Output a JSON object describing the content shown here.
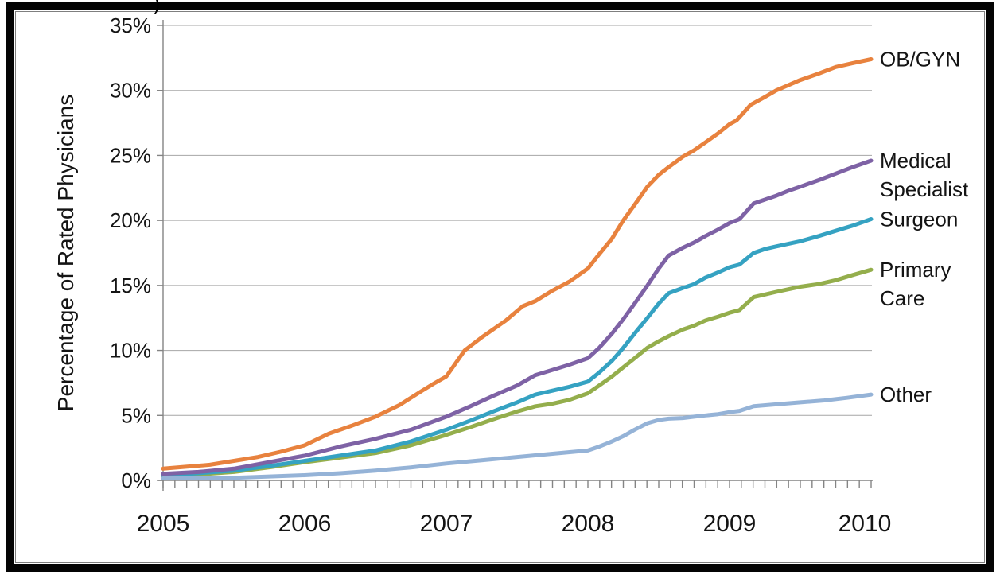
{
  "artifact_text": ")",
  "frame": {
    "outer_border_color": "#040404",
    "inner_line_color": "#7f7f7f",
    "background": "#ffffff"
  },
  "chart_data": {
    "type": "line",
    "title": "",
    "xlabel": "",
    "ylabel": "Percentage of Rated Physicians",
    "x_range": [
      2005,
      2010
    ],
    "y_range": [
      0,
      35
    ],
    "grid": true,
    "grid_color": "#a6a6a6",
    "axis_color": "#848484",
    "text_color": "#141414",
    "y_tick_values": [
      0,
      5,
      10,
      15,
      20,
      25,
      30,
      35
    ],
    "y_tick_suffix": "%",
    "x_tick_labels": [
      "2005",
      "2006",
      "2007",
      "2008",
      "2009",
      "2010"
    ],
    "minor_ticks_per_year": 12,
    "legend_position": "labels-at-line-ends-right",
    "z_order": [
      3,
      2,
      1,
      0,
      4
    ],
    "series": [
      {
        "name": "OB/GYN",
        "label_lines": [
          "OB/GYN"
        ],
        "color": "#E8823E",
        "points": [
          [
            2005.0,
            0.9
          ],
          [
            2005.17,
            1.05
          ],
          [
            2005.33,
            1.2
          ],
          [
            2005.5,
            1.5
          ],
          [
            2005.67,
            1.8
          ],
          [
            2005.83,
            2.2
          ],
          [
            2006.0,
            2.7
          ],
          [
            2006.17,
            3.6
          ],
          [
            2006.33,
            4.2
          ],
          [
            2006.5,
            4.9
          ],
          [
            2006.67,
            5.8
          ],
          [
            2006.83,
            6.9
          ],
          [
            2006.92,
            7.5
          ],
          [
            2007.0,
            8.0
          ],
          [
            2007.13,
            10.0
          ],
          [
            2007.25,
            11.0
          ],
          [
            2007.42,
            12.3
          ],
          [
            2007.54,
            13.4
          ],
          [
            2007.63,
            13.8
          ],
          [
            2007.75,
            14.6
          ],
          [
            2007.87,
            15.3
          ],
          [
            2008.0,
            16.3
          ],
          [
            2008.08,
            17.4
          ],
          [
            2008.17,
            18.6
          ],
          [
            2008.25,
            20.0
          ],
          [
            2008.33,
            21.2
          ],
          [
            2008.42,
            22.6
          ],
          [
            2008.5,
            23.5
          ],
          [
            2008.57,
            24.1
          ],
          [
            2008.67,
            24.9
          ],
          [
            2008.75,
            25.4
          ],
          [
            2008.83,
            26.0
          ],
          [
            2008.92,
            26.7
          ],
          [
            2009.0,
            27.4
          ],
          [
            2009.05,
            27.7
          ],
          [
            2009.15,
            28.9
          ],
          [
            2009.25,
            29.5
          ],
          [
            2009.33,
            30.0
          ],
          [
            2009.5,
            30.8
          ],
          [
            2009.63,
            31.3
          ],
          [
            2009.75,
            31.8
          ],
          [
            2009.87,
            32.1
          ],
          [
            2010.0,
            32.4
          ]
        ]
      },
      {
        "name": "Medical Specialist",
        "label_lines": [
          "Medical",
          "Specialist"
        ],
        "color": "#7E62A5",
        "points": [
          [
            2005.0,
            0.5
          ],
          [
            2005.25,
            0.65
          ],
          [
            2005.5,
            0.9
          ],
          [
            2005.75,
            1.4
          ],
          [
            2006.0,
            1.9
          ],
          [
            2006.25,
            2.6
          ],
          [
            2006.5,
            3.2
          ],
          [
            2006.75,
            3.9
          ],
          [
            2007.0,
            4.9
          ],
          [
            2007.17,
            5.7
          ],
          [
            2007.33,
            6.5
          ],
          [
            2007.5,
            7.3
          ],
          [
            2007.63,
            8.1
          ],
          [
            2007.75,
            8.5
          ],
          [
            2007.87,
            8.9
          ],
          [
            2008.0,
            9.4
          ],
          [
            2008.08,
            10.2
          ],
          [
            2008.17,
            11.3
          ],
          [
            2008.25,
            12.4
          ],
          [
            2008.33,
            13.6
          ],
          [
            2008.42,
            15.0
          ],
          [
            2008.5,
            16.3
          ],
          [
            2008.57,
            17.3
          ],
          [
            2008.67,
            17.9
          ],
          [
            2008.75,
            18.3
          ],
          [
            2008.83,
            18.8
          ],
          [
            2008.92,
            19.3
          ],
          [
            2009.0,
            19.8
          ],
          [
            2009.07,
            20.1
          ],
          [
            2009.17,
            21.3
          ],
          [
            2009.25,
            21.6
          ],
          [
            2009.33,
            21.9
          ],
          [
            2009.42,
            22.3
          ],
          [
            2009.5,
            22.6
          ],
          [
            2009.63,
            23.1
          ],
          [
            2009.75,
            23.6
          ],
          [
            2009.87,
            24.1
          ],
          [
            2010.0,
            24.6
          ]
        ]
      },
      {
        "name": "Surgeon",
        "label_lines": [
          "Surgeon"
        ],
        "color": "#35A2C2",
        "points": [
          [
            2005.0,
            0.4
          ],
          [
            2005.25,
            0.55
          ],
          [
            2005.5,
            0.75
          ],
          [
            2005.75,
            1.1
          ],
          [
            2006.0,
            1.5
          ],
          [
            2006.25,
            1.9
          ],
          [
            2006.5,
            2.3
          ],
          [
            2006.75,
            3.0
          ],
          [
            2007.0,
            3.9
          ],
          [
            2007.17,
            4.6
          ],
          [
            2007.33,
            5.3
          ],
          [
            2007.5,
            6.0
          ],
          [
            2007.63,
            6.6
          ],
          [
            2007.75,
            6.9
          ],
          [
            2007.87,
            7.2
          ],
          [
            2008.0,
            7.6
          ],
          [
            2008.08,
            8.3
          ],
          [
            2008.17,
            9.2
          ],
          [
            2008.25,
            10.2
          ],
          [
            2008.33,
            11.3
          ],
          [
            2008.42,
            12.5
          ],
          [
            2008.5,
            13.6
          ],
          [
            2008.57,
            14.4
          ],
          [
            2008.67,
            14.8
          ],
          [
            2008.75,
            15.1
          ],
          [
            2008.83,
            15.6
          ],
          [
            2008.92,
            16.0
          ],
          [
            2009.0,
            16.4
          ],
          [
            2009.07,
            16.6
          ],
          [
            2009.17,
            17.5
          ],
          [
            2009.25,
            17.8
          ],
          [
            2009.33,
            18.0
          ],
          [
            2009.5,
            18.4
          ],
          [
            2009.63,
            18.8
          ],
          [
            2009.75,
            19.2
          ],
          [
            2009.87,
            19.6
          ],
          [
            2010.0,
            20.1
          ]
        ]
      },
      {
        "name": "Primary Care",
        "label_lines": [
          "Primary",
          "Care"
        ],
        "color": "#94AE4C",
        "points": [
          [
            2005.0,
            0.35
          ],
          [
            2005.25,
            0.45
          ],
          [
            2005.5,
            0.65
          ],
          [
            2005.75,
            1.0
          ],
          [
            2006.0,
            1.4
          ],
          [
            2006.25,
            1.75
          ],
          [
            2006.5,
            2.1
          ],
          [
            2006.75,
            2.7
          ],
          [
            2007.0,
            3.5
          ],
          [
            2007.17,
            4.1
          ],
          [
            2007.33,
            4.7
          ],
          [
            2007.5,
            5.3
          ],
          [
            2007.63,
            5.7
          ],
          [
            2007.75,
            5.9
          ],
          [
            2007.87,
            6.2
          ],
          [
            2008.0,
            6.7
          ],
          [
            2008.08,
            7.3
          ],
          [
            2008.17,
            8.0
          ],
          [
            2008.25,
            8.7
          ],
          [
            2008.33,
            9.4
          ],
          [
            2008.42,
            10.2
          ],
          [
            2008.5,
            10.7
          ],
          [
            2008.57,
            11.1
          ],
          [
            2008.67,
            11.6
          ],
          [
            2008.75,
            11.9
          ],
          [
            2008.83,
            12.3
          ],
          [
            2008.92,
            12.6
          ],
          [
            2009.0,
            12.9
          ],
          [
            2009.07,
            13.1
          ],
          [
            2009.17,
            14.1
          ],
          [
            2009.25,
            14.3
          ],
          [
            2009.33,
            14.5
          ],
          [
            2009.5,
            14.9
          ],
          [
            2009.63,
            15.1
          ],
          [
            2009.75,
            15.4
          ],
          [
            2009.87,
            15.8
          ],
          [
            2010.0,
            16.2
          ]
        ]
      },
      {
        "name": "Other",
        "label_lines": [
          "Other"
        ],
        "color": "#95B3D7",
        "points": [
          [
            2005.0,
            0.15
          ],
          [
            2005.5,
            0.2
          ],
          [
            2005.75,
            0.3
          ],
          [
            2006.0,
            0.4
          ],
          [
            2006.25,
            0.55
          ],
          [
            2006.5,
            0.75
          ],
          [
            2006.75,
            1.0
          ],
          [
            2007.0,
            1.3
          ],
          [
            2007.25,
            1.55
          ],
          [
            2007.5,
            1.8
          ],
          [
            2007.75,
            2.05
          ],
          [
            2008.0,
            2.3
          ],
          [
            2008.08,
            2.6
          ],
          [
            2008.17,
            3.0
          ],
          [
            2008.25,
            3.4
          ],
          [
            2008.33,
            3.9
          ],
          [
            2008.42,
            4.4
          ],
          [
            2008.5,
            4.65
          ],
          [
            2008.57,
            4.75
          ],
          [
            2008.67,
            4.8
          ],
          [
            2008.75,
            4.9
          ],
          [
            2008.83,
            5.0
          ],
          [
            2008.92,
            5.1
          ],
          [
            2009.0,
            5.25
          ],
          [
            2009.07,
            5.35
          ],
          [
            2009.17,
            5.7
          ],
          [
            2009.33,
            5.85
          ],
          [
            2009.5,
            6.0
          ],
          [
            2009.67,
            6.15
          ],
          [
            2009.83,
            6.35
          ],
          [
            2010.0,
            6.6
          ]
        ]
      }
    ]
  }
}
